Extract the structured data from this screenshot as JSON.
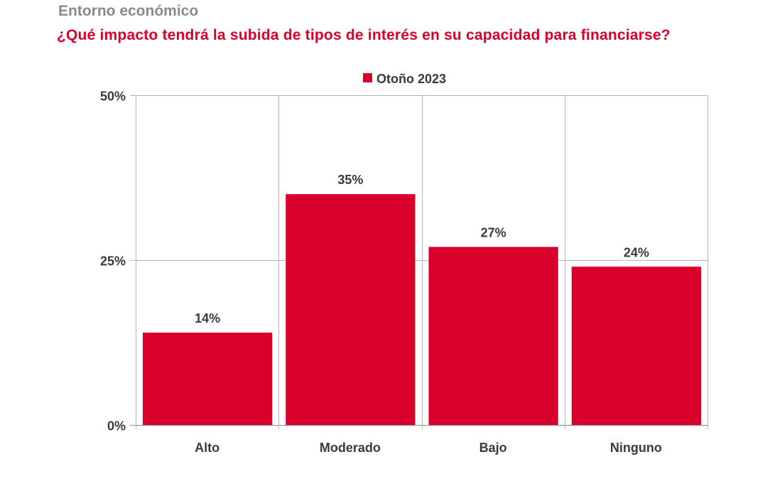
{
  "header": {
    "kicker": "Entorno económico",
    "title": "¿Qué impacto tendrá la subida de tipos de interés en su capacidad para financiarse?"
  },
  "chart_data": {
    "type": "bar",
    "categories": [
      "Alto",
      "Moderado",
      "Bajo",
      "Ninguno"
    ],
    "series": [
      {
        "name": "Otoño 2023",
        "values": [
          14,
          35,
          27,
          24
        ],
        "color": "#d9002b"
      }
    ],
    "data_labels": [
      "14%",
      "35%",
      "27%",
      "24%"
    ],
    "ylim": [
      0,
      50
    ],
    "yticks": [
      0,
      25,
      50
    ],
    "ytick_labels": [
      "0%",
      "25%",
      "50%"
    ],
    "grid": true,
    "legend": "top-center"
  }
}
